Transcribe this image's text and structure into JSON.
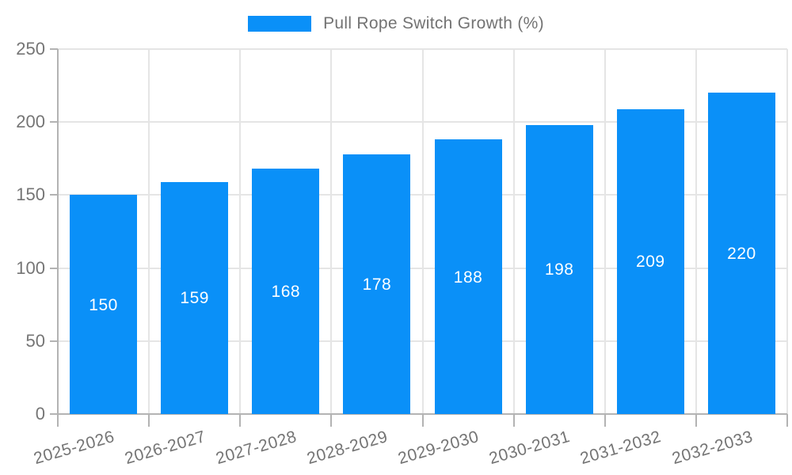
{
  "chart_data": {
    "type": "bar",
    "title": "",
    "legend": {
      "label": "Pull Rope Switch Growth (%)",
      "position": "top"
    },
    "categories": [
      "2025-2026",
      "2026-2027",
      "2027-2028",
      "2028-2029",
      "2029-2030",
      "2030-2031",
      "2031-2032",
      "2032-2033"
    ],
    "series": [
      {
        "name": "Pull Rope Switch Growth (%)",
        "values": [
          150,
          159,
          168,
          178,
          188,
          198,
          209,
          220
        ]
      }
    ],
    "value_labels_shown": true,
    "xlabel": "",
    "ylabel": "",
    "ylim": [
      0,
      250
    ],
    "yticks": [
      0,
      50,
      100,
      150,
      200,
      250
    ],
    "grid": true,
    "x_tick_label_rotation_deg": -16,
    "colors": {
      "bar": "#0a90f8",
      "grid_line": "#e5e5e5",
      "axis_line": "#b3b3b3",
      "tick_label": "#757575",
      "value_label": "#ffffff",
      "background": "#ffffff"
    }
  }
}
